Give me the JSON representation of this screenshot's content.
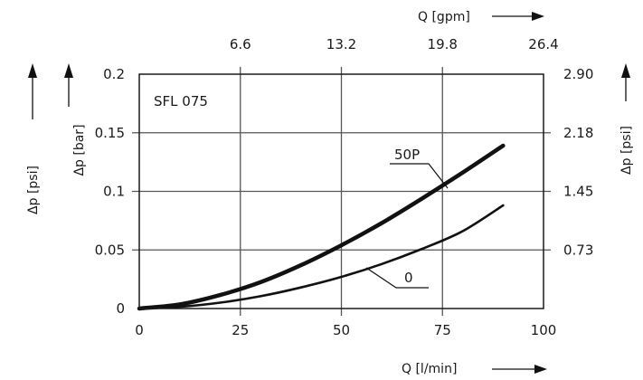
{
  "chart_data": {
    "type": "line",
    "annotation": "SFL 075",
    "x_bottom": {
      "label": "Q [l/min]",
      "ticks": [
        "0",
        "25",
        "50",
        "75",
        "100"
      ],
      "range": [
        0,
        100
      ]
    },
    "x_top": {
      "label": "Q [gpm]",
      "ticks": [
        "6.6",
        "13.2",
        "19.8",
        "26.4"
      ]
    },
    "y_left_outer_label": "Δp [psi]",
    "y_left": {
      "label": "Δp [bar]",
      "ticks": [
        "0",
        "0.05",
        "0.1",
        "0.15",
        "0.2"
      ],
      "range": [
        0,
        0.2
      ]
    },
    "y_right": {
      "label": "Δp [psi]",
      "ticks": [
        "0.73",
        "1.45",
        "2.18",
        "2.90"
      ]
    },
    "grid": true,
    "series": [
      {
        "name": "50P",
        "x": [
          0,
          10,
          20,
          30,
          40,
          50,
          60,
          70,
          80,
          90
        ],
        "y": [
          0,
          0.0035,
          0.0115,
          0.0225,
          0.037,
          0.054,
          0.073,
          0.094,
          0.116,
          0.139
        ]
      },
      {
        "name": "0",
        "x": [
          0,
          10,
          20,
          30,
          40,
          50,
          60,
          70,
          80,
          90
        ],
        "y": [
          0,
          0.0015,
          0.005,
          0.0105,
          0.018,
          0.027,
          0.038,
          0.051,
          0.066,
          0.088
        ]
      }
    ]
  }
}
